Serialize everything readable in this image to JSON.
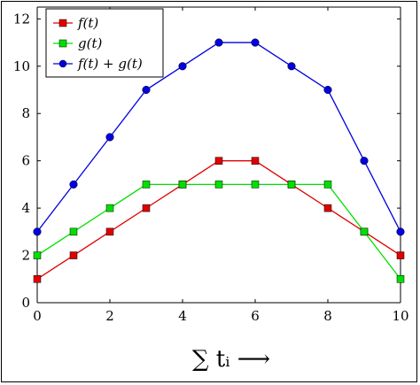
{
  "chart_data": {
    "type": "line",
    "x": [
      0,
      1,
      2,
      3,
      4,
      5,
      6,
      7,
      8,
      9,
      10
    ],
    "series": [
      {
        "name": "f(t)",
        "color": "#e00000",
        "marker": "square",
        "values": [
          1,
          2,
          3,
          4,
          5,
          6,
          6,
          5,
          4,
          3,
          2
        ]
      },
      {
        "name": "g(t)",
        "color": "#00e000",
        "marker": "square",
        "values": [
          2,
          3,
          4,
          5,
          5,
          5,
          5,
          5,
          5,
          3,
          1
        ]
      },
      {
        "name": "f(t) + g(t)",
        "color": "#0000e0",
        "marker": "circle",
        "values": [
          3,
          5,
          7,
          9,
          10,
          11,
          11,
          10,
          9,
          6,
          3
        ]
      }
    ],
    "xlim": [
      0,
      10
    ],
    "ylim": [
      0,
      12.5
    ],
    "xticks": [
      "0",
      "2",
      "4",
      "6",
      "8",
      "10"
    ],
    "yticks": [
      "0",
      "2",
      "4",
      "6",
      "8",
      "10",
      "12"
    ],
    "xlabel": "∑ tᵢ  ⟶",
    "ylabel": "",
    "grid": false,
    "legend_position": "top-left"
  }
}
